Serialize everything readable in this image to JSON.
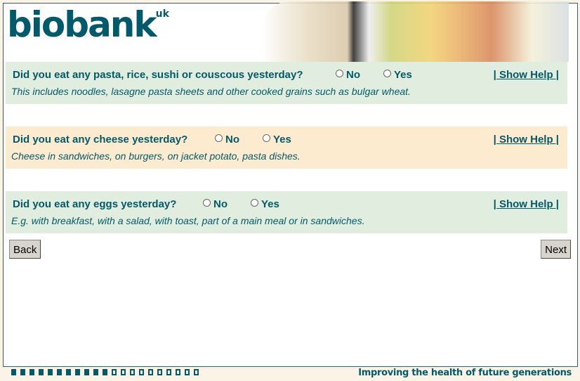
{
  "logo": {
    "text": "biobank",
    "suffix": "uk"
  },
  "questions": [
    {
      "question": "Did you eat any pasta, rice, sushi or couscous yesterday?",
      "options": [
        "No",
        "Yes"
      ],
      "help": "| Show Help |",
      "hint": "This includes noodles, lasagne pasta sheets and other cooked grains such as bulgar wheat."
    },
    {
      "question": "Did you eat any cheese yesterday?",
      "options": [
        "No",
        "Yes"
      ],
      "help": "| Show Help |",
      "hint": "Cheese in sandwiches, on burgers, on jacket potato, pasta dishes."
    },
    {
      "question": "Did you eat any eggs yesterday?",
      "options": [
        "No",
        "Yes"
      ],
      "help": "| Show Help |",
      "hint": "E.g. with breakfast, with a salad, with toast, part of a main meal or in sandwiches."
    }
  ],
  "nav": {
    "back": "Back",
    "next": "Next"
  },
  "progress": {
    "completed": 11,
    "total": 21
  },
  "footer": {
    "tagline": "Improving the health of future generations"
  },
  "colors": {
    "brand": "#005a6a",
    "green_panel": "#e1eedf",
    "cream_panel": "#fdebd0"
  }
}
